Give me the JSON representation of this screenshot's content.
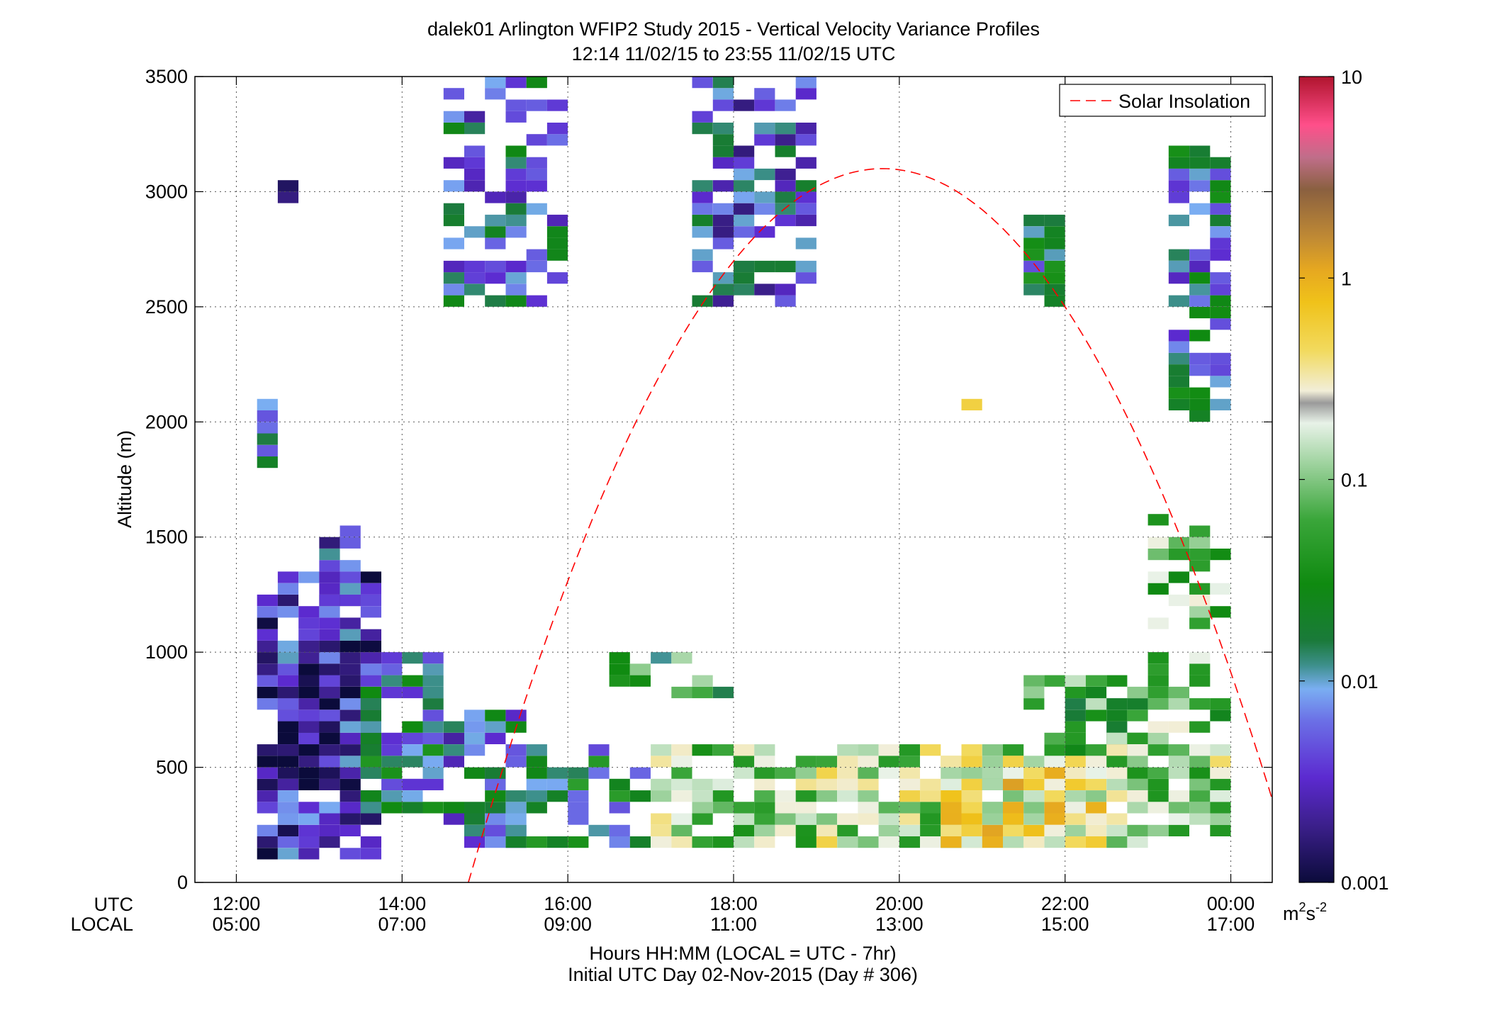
{
  "chart_data": {
    "type": "heatmap",
    "title": "dalek01 Arlington WFIP2 Study 2015 - Vertical Velocity Variance Profiles",
    "subtitle": "12:14 11/02/15 to 23:55 11/02/15  UTC",
    "ylabel": "Altitude (m)",
    "xlabel": "Hours HH:MM  (LOCAL = UTC - 7hr)",
    "xlabel2": "Initial UTC Day 02-Nov-2015 (Day # 306)",
    "x_row_label_utc": "UTC",
    "x_row_label_local": "LOCAL",
    "xlim_hours": [
      11.5,
      24.5
    ],
    "ylim": [
      0,
      3500
    ],
    "x_ticks_utc": [
      "12:00",
      "14:00",
      "16:00",
      "18:00",
      "20:00",
      "22:00",
      "00:00"
    ],
    "x_ticks_local": [
      "05:00",
      "07:00",
      "09:00",
      "11:00",
      "13:00",
      "15:00",
      "17:00"
    ],
    "x_tick_hours": [
      12,
      14,
      16,
      18,
      20,
      22,
      24
    ],
    "y_ticks": [
      0,
      500,
      1000,
      1500,
      2000,
      2500,
      3000,
      3500
    ],
    "y_tick_labels": [
      "0",
      "500",
      "1000",
      "1500",
      "2000",
      "2500",
      "3000",
      "3500"
    ],
    "grid": true,
    "legend": {
      "position": "top-right",
      "entries": [
        {
          "label": "Solar Insolation",
          "color": "#ff0000",
          "style": "dashed"
        }
      ]
    },
    "colorbar": {
      "scale": "log",
      "range": [
        0.001,
        10
      ],
      "ticks": [
        "10",
        "1",
        "0.1",
        "0.01",
        "0.001"
      ],
      "tick_values": [
        10,
        1,
        0.1,
        0.01,
        0.001
      ],
      "units_label": "m",
      "units_exp1": "2",
      "units_mid": "s",
      "units_exp2": "-2"
    },
    "solar_insolation": {
      "curve": "parabolic",
      "start_hour": 14.8,
      "peak_hour": 19.8,
      "peak_altitude": 3100,
      "end_hour": 24.5,
      "end_altitude": 200
    },
    "cell_size": {
      "hours": 0.25,
      "meters": 50
    },
    "cell_groups": [
      {
        "hour_start": 12.25,
        "hour_end": 13.75,
        "alt_start": 100,
        "alt_end": 1350,
        "level": 0.003,
        "density": 0.8
      },
      {
        "hour_start": 12.5,
        "hour_end": 13.25,
        "alt_start": 450,
        "alt_end": 950,
        "level": 0.0015,
        "density": 0.9
      },
      {
        "hour_start": 12.25,
        "hour_end": 12.5,
        "alt_start": 1800,
        "alt_end": 2100,
        "level": 0.008,
        "density": 1.0
      },
      {
        "hour_start": 12.5,
        "hour_end": 12.75,
        "alt_start": 2950,
        "alt_end": 3050,
        "level": 0.002,
        "density": 1.0
      },
      {
        "hour_start": 13.0,
        "hour_end": 13.5,
        "alt_start": 1200,
        "alt_end": 1550,
        "level": 0.004,
        "density": 0.7
      },
      {
        "hour_start": 13.5,
        "hour_end": 14.5,
        "alt_start": 300,
        "alt_end": 1000,
        "level": 0.012,
        "density": 0.8
      },
      {
        "hour_start": 14.5,
        "hour_end": 15.5,
        "alt_start": 150,
        "alt_end": 750,
        "level": 0.008,
        "density": 0.7
      },
      {
        "hour_start": 15.0,
        "hour_end": 17.0,
        "alt_start": 150,
        "alt_end": 600,
        "level": 0.015,
        "density": 0.55
      },
      {
        "hour_start": 14.5,
        "hour_end": 16.0,
        "alt_start": 2500,
        "alt_end": 3500,
        "level": 0.008,
        "density": 0.55
      },
      {
        "hour_start": 16.5,
        "hour_end": 18.0,
        "alt_start": 800,
        "alt_end": 1000,
        "level": 0.04,
        "density": 0.5
      },
      {
        "hour_start": 17.5,
        "hour_end": 19.0,
        "alt_start": 2500,
        "alt_end": 3500,
        "level": 0.006,
        "density": 0.6
      },
      {
        "hour_start": 17.0,
        "hour_end": 19.0,
        "alt_start": 150,
        "alt_end": 600,
        "level": 0.12,
        "density": 0.75
      },
      {
        "hour_start": 19.0,
        "hour_end": 21.5,
        "alt_start": 150,
        "alt_end": 600,
        "level": 0.15,
        "density": 0.85
      },
      {
        "hour_start": 20.5,
        "hour_end": 22.5,
        "alt_start": 150,
        "alt_end": 550,
        "level": 0.35,
        "density": 0.95
      },
      {
        "hour_start": 20.75,
        "hour_end": 21.0,
        "alt_start": 2050,
        "alt_end": 2100,
        "level": 0.3,
        "density": 1.0
      },
      {
        "hour_start": 21.5,
        "hour_end": 22.0,
        "alt_start": 2500,
        "alt_end": 2900,
        "level": 0.012,
        "density": 0.75
      },
      {
        "hour_start": 21.5,
        "hour_end": 23.0,
        "alt_start": 550,
        "alt_end": 900,
        "level": 0.05,
        "density": 0.6
      },
      {
        "hour_start": 22.5,
        "hour_end": 24.0,
        "alt_start": 150,
        "alt_end": 700,
        "level": 0.12,
        "density": 0.85
      },
      {
        "hour_start": 23.0,
        "hour_end": 24.0,
        "alt_start": 700,
        "alt_end": 1600,
        "level": 0.08,
        "density": 0.55
      },
      {
        "hour_start": 23.25,
        "hour_end": 24.0,
        "alt_start": 2000,
        "alt_end": 3200,
        "level": 0.01,
        "density": 0.7
      }
    ]
  }
}
